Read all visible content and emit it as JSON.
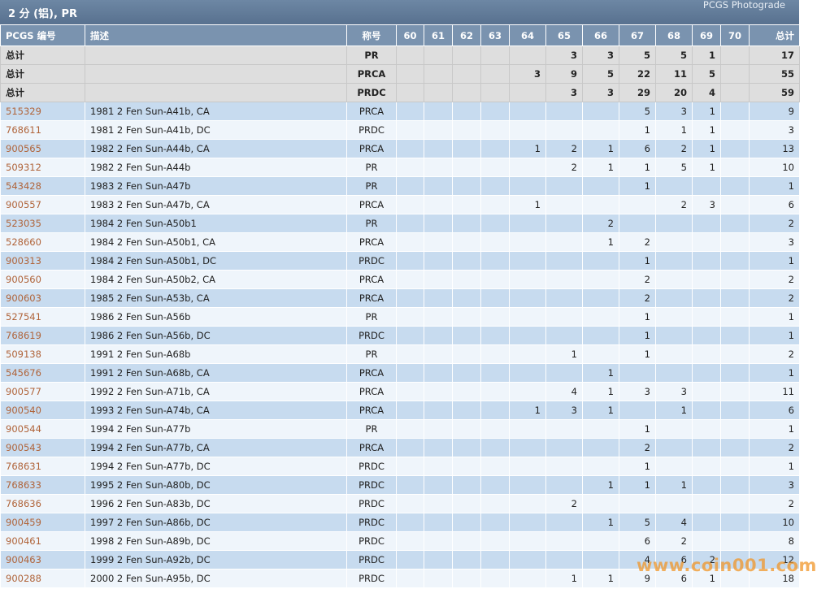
{
  "header": {
    "title": "2 分 (铝), PR",
    "subtitle": "PCGS Photograde"
  },
  "table": {
    "columns": [
      "PCGS 编号",
      "描述",
      "称号",
      "60",
      "61",
      "62",
      "63",
      "64",
      "65",
      "66",
      "67",
      "68",
      "69",
      "70",
      "总计"
    ],
    "totals": [
      [
        "总计",
        null,
        "PR",
        null,
        null,
        null,
        null,
        null,
        3,
        3,
        5,
        5,
        1,
        null,
        17
      ],
      [
        "总计",
        null,
        "PRCA",
        null,
        null,
        null,
        null,
        3,
        9,
        5,
        22,
        11,
        5,
        null,
        55
      ],
      [
        "总计",
        null,
        "PRDC",
        null,
        null,
        null,
        null,
        null,
        3,
        3,
        29,
        20,
        4,
        null,
        59
      ]
    ],
    "rows": [
      [
        "515329",
        "1981 2 Fen Sun-A41b, CA",
        "PRCA",
        null,
        null,
        null,
        null,
        null,
        null,
        null,
        5,
        3,
        1,
        null,
        9
      ],
      [
        "768611",
        "1981 2 Fen Sun-A41b, DC",
        "PRDC",
        null,
        null,
        null,
        null,
        null,
        null,
        null,
        1,
        1,
        1,
        null,
        3
      ],
      [
        "900565",
        "1982 2 Fen Sun-A44b, CA",
        "PRCA",
        null,
        null,
        null,
        null,
        1,
        2,
        1,
        6,
        2,
        1,
        null,
        13
      ],
      [
        "509312",
        "1982 2 Fen Sun-A44b",
        "PR",
        null,
        null,
        null,
        null,
        null,
        2,
        1,
        1,
        5,
        1,
        null,
        10
      ],
      [
        "543428",
        "1983 2 Fen Sun-A47b",
        "PR",
        null,
        null,
        null,
        null,
        null,
        null,
        null,
        1,
        null,
        null,
        null,
        1
      ],
      [
        "900557",
        "1983 2 Fen Sun-A47b, CA",
        "PRCA",
        null,
        null,
        null,
        null,
        1,
        null,
        null,
        null,
        2,
        3,
        null,
        6
      ],
      [
        "523035",
        "1984 2 Fen Sun-A50b1",
        "PR",
        null,
        null,
        null,
        null,
        null,
        null,
        2,
        null,
        null,
        null,
        null,
        2
      ],
      [
        "528660",
        "1984 2 Fen Sun-A50b1, CA",
        "PRCA",
        null,
        null,
        null,
        null,
        null,
        null,
        1,
        2,
        null,
        null,
        null,
        3
      ],
      [
        "900313",
        "1984 2 Fen Sun-A50b1, DC",
        "PRDC",
        null,
        null,
        null,
        null,
        null,
        null,
        null,
        1,
        null,
        null,
        null,
        1
      ],
      [
        "900560",
        "1984 2 Fen Sun-A50b2, CA",
        "PRCA",
        null,
        null,
        null,
        null,
        null,
        null,
        null,
        2,
        null,
        null,
        null,
        2
      ],
      [
        "900603",
        "1985 2 Fen Sun-A53b, CA",
        "PRCA",
        null,
        null,
        null,
        null,
        null,
        null,
        null,
        2,
        null,
        null,
        null,
        2
      ],
      [
        "527541",
        "1986 2 Fen Sun-A56b",
        "PR",
        null,
        null,
        null,
        null,
        null,
        null,
        null,
        1,
        null,
        null,
        null,
        1
      ],
      [
        "768619",
        "1986 2 Fen Sun-A56b, DC",
        "PRDC",
        null,
        null,
        null,
        null,
        null,
        null,
        null,
        1,
        null,
        null,
        null,
        1
      ],
      [
        "509138",
        "1991 2 Fen Sun-A68b",
        "PR",
        null,
        null,
        null,
        null,
        null,
        1,
        null,
        1,
        null,
        null,
        null,
        2
      ],
      [
        "545676",
        "1991 2 Fen Sun-A68b, CA",
        "PRCA",
        null,
        null,
        null,
        null,
        null,
        null,
        1,
        null,
        null,
        null,
        null,
        1
      ],
      [
        "900577",
        "1992 2 Fen Sun-A71b, CA",
        "PRCA",
        null,
        null,
        null,
        null,
        null,
        4,
        1,
        3,
        3,
        null,
        null,
        11
      ],
      [
        "900540",
        "1993 2 Fen Sun-A74b, CA",
        "PRCA",
        null,
        null,
        null,
        null,
        1,
        3,
        1,
        null,
        1,
        null,
        null,
        6
      ],
      [
        "900544",
        "1994 2 Fen Sun-A77b",
        "PR",
        null,
        null,
        null,
        null,
        null,
        null,
        null,
        1,
        null,
        null,
        null,
        1
      ],
      [
        "900543",
        "1994 2 Fen Sun-A77b, CA",
        "PRCA",
        null,
        null,
        null,
        null,
        null,
        null,
        null,
        2,
        null,
        null,
        null,
        2
      ],
      [
        "768631",
        "1994 2 Fen Sun-A77b, DC",
        "PRDC",
        null,
        null,
        null,
        null,
        null,
        null,
        null,
        1,
        null,
        null,
        null,
        1
      ],
      [
        "768633",
        "1995 2 Fen Sun-A80b, DC",
        "PRDC",
        null,
        null,
        null,
        null,
        null,
        null,
        1,
        1,
        1,
        null,
        null,
        3
      ],
      [
        "768636",
        "1996 2 Fen Sun-A83b, DC",
        "PRDC",
        null,
        null,
        null,
        null,
        null,
        2,
        null,
        null,
        null,
        null,
        null,
        2
      ],
      [
        "900459",
        "1997 2 Fen Sun-A86b, DC",
        "PRDC",
        null,
        null,
        null,
        null,
        null,
        null,
        1,
        5,
        4,
        null,
        null,
        10
      ],
      [
        "900461",
        "1998 2 Fen Sun-A89b, DC",
        "PRDC",
        null,
        null,
        null,
        null,
        null,
        null,
        null,
        6,
        2,
        null,
        null,
        8
      ],
      [
        "900463",
        "1999 2 Fen Sun-A92b, DC",
        "PRDC",
        null,
        null,
        null,
        null,
        null,
        null,
        null,
        4,
        6,
        2,
        null,
        12
      ],
      [
        "900288",
        "2000 2 Fen Sun-A95b, DC",
        "PRDC",
        null,
        null,
        null,
        null,
        null,
        1,
        1,
        9,
        6,
        1,
        null,
        18
      ]
    ]
  },
  "watermark": "www.coin001.com"
}
